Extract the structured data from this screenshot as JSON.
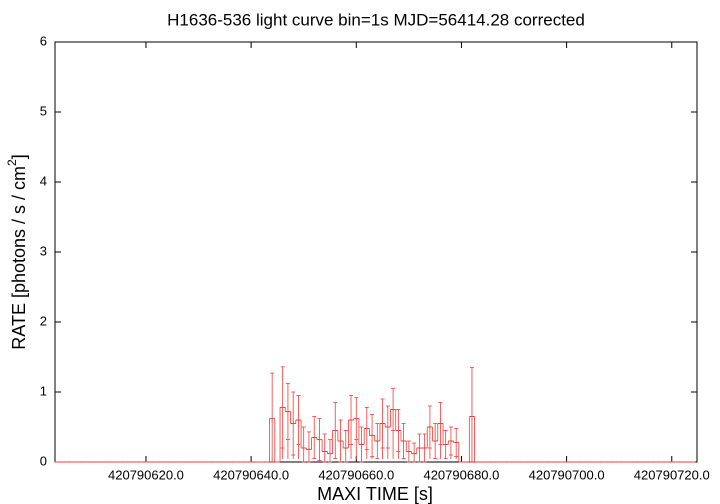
{
  "chart_data": {
    "type": "histogram-step",
    "title": "H1636-536 light curve bin=1s MJD=56414.28 corrected",
    "x_label": "MAXI TIME [s]",
    "y_label": "RATE [photons / s / cm",
    "y_label_superscript": "2",
    "y_label_end": "]",
    "color": "#e8403c",
    "x": [
      420790603,
      420790604,
      420790605,
      420790606,
      420790607,
      420790608,
      420790609,
      420790610,
      420790611,
      420790612,
      420790613,
      420790614,
      420790615,
      420790616,
      420790617,
      420790618,
      420790619,
      420790620,
      420790621,
      420790622,
      420790623,
      420790624,
      420790625,
      420790626,
      420790627,
      420790628,
      420790629,
      420790630,
      420790631,
      420790632,
      420790633,
      420790634,
      420790635,
      420790636,
      420790637,
      420790638,
      420790639,
      420790640,
      420790641,
      420790642,
      420790643,
      420790644,
      420790645,
      420790646,
      420790647,
      420790648,
      420790649,
      420790650,
      420790651,
      420790652,
      420790653,
      420790654,
      420790655,
      420790656,
      420790657,
      420790658,
      420790659,
      420790660,
      420790661,
      420790662,
      420790663,
      420790664,
      420790665,
      420790666,
      420790667,
      420790668,
      420790669,
      420790670,
      420790671,
      420790672,
      420790673,
      420790674,
      420790675,
      420790676,
      420790677,
      420790678,
      420790679,
      420790680,
      420790681,
      420790682,
      420790683,
      420790684,
      420790685,
      420790686,
      420790687,
      420790688,
      420790689,
      420790690,
      420790691,
      420790692,
      420790693,
      420790694,
      420790695,
      420790696,
      420790697,
      420790698,
      420790699,
      420790700,
      420790701,
      420790702,
      420790703,
      420790704,
      420790705,
      420790706,
      420790707,
      420790708,
      420790709,
      420790710,
      420790711,
      420790712,
      420790713,
      420790714,
      420790715,
      420790716,
      420790717,
      420790718,
      420790719,
      420790720,
      420790721,
      420790722,
      420790723,
      420790724
    ],
    "values": [
      0,
      0,
      0,
      0,
      0,
      0,
      0,
      0,
      0,
      0,
      0,
      0,
      0,
      0,
      0,
      0,
      0,
      0,
      0,
      0,
      0,
      0,
      0,
      0,
      0,
      0,
      0,
      0,
      0,
      0,
      0,
      0,
      0,
      0,
      0,
      0,
      0,
      0,
      0,
      0,
      0,
      0.62,
      0,
      0.78,
      0.72,
      0.55,
      0.6,
      0.2,
      0.18,
      0.35,
      0.32,
      0.15,
      0.12,
      0.45,
      0.3,
      0.2,
      0.6,
      0.62,
      0.25,
      0.48,
      0.38,
      0.3,
      0.55,
      0.5,
      0.75,
      0.45,
      0.3,
      0.15,
      0.12,
      0.2,
      0.2,
      0.5,
      0.3,
      0.55,
      0.25,
      0.3,
      0.28,
      0,
      0,
      0.65,
      0,
      0,
      0,
      0,
      0,
      0,
      0,
      0,
      0,
      0,
      0,
      0,
      0,
      0,
      0,
      0,
      0,
      0,
      0,
      0,
      0,
      0,
      0,
      0,
      0,
      0,
      0,
      0,
      0,
      0,
      0,
      0,
      0,
      0,
      0,
      0,
      0,
      0,
      0,
      0,
      0,
      0
    ],
    "errors": [
      0,
      0,
      0,
      0,
      0,
      0,
      0,
      0,
      0,
      0,
      0,
      0,
      0,
      0,
      0,
      0,
      0,
      0,
      0,
      0,
      0,
      0,
      0,
      0,
      0,
      0,
      0,
      0,
      0,
      0,
      0,
      0,
      0,
      0,
      0,
      0,
      0,
      0,
      0,
      0,
      0,
      0.65,
      0,
      0.58,
      0.4,
      0.45,
      0.35,
      0.3,
      0.25,
      0.3,
      0.3,
      0.25,
      0.2,
      0.4,
      0.3,
      0.25,
      0.35,
      0.3,
      0.25,
      0.3,
      0.3,
      0.25,
      0.35,
      0.3,
      0.3,
      0.3,
      0.25,
      0.15,
      0.15,
      0.2,
      0.2,
      0.3,
      0.25,
      0.3,
      0.2,
      0.2,
      0.2,
      0,
      0,
      0.7,
      0,
      0,
      0,
      0,
      0,
      0,
      0,
      0,
      0,
      0,
      0,
      0,
      0,
      0,
      0,
      0,
      0,
      0,
      0,
      0,
      0,
      0,
      0,
      0,
      0,
      0,
      0,
      0,
      0,
      0,
      0,
      0,
      0,
      0,
      0,
      0,
      0,
      0,
      0,
      0,
      0,
      0
    ],
    "xlim": [
      420790602.7,
      420790724.8
    ],
    "xticks": [
      {
        "value": 420790620,
        "label": "420790620.0"
      },
      {
        "value": 420790640,
        "label": "420790640.0"
      },
      {
        "value": 420790660,
        "label": "420790660.0"
      },
      {
        "value": 420790680,
        "label": "420790680.0"
      },
      {
        "value": 420790700,
        "label": "420790700.0"
      },
      {
        "value": 420790720,
        "label": "420790720.0"
      }
    ],
    "ylim": [
      0,
      6
    ],
    "yticks": [
      0,
      1,
      2,
      3,
      4,
      5,
      6
    ],
    "grid": false
  }
}
